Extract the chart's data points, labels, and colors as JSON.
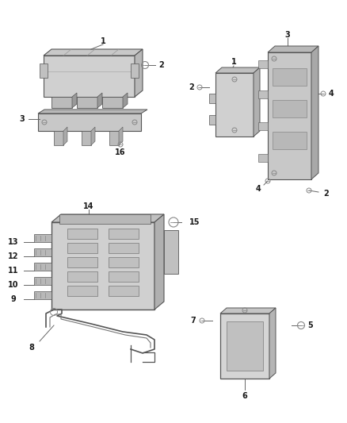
{
  "background_color": "#ffffff",
  "figsize": [
    4.38,
    5.33
  ],
  "dpi": 100,
  "label_fontsize": 7.0,
  "label_color": "#1a1a1a",
  "line_color": "#666666",
  "component_edge": "#555555",
  "component_face": "#d8d8d8",
  "component_dark": "#aaaaaa",
  "component_light": "#eeeeee"
}
